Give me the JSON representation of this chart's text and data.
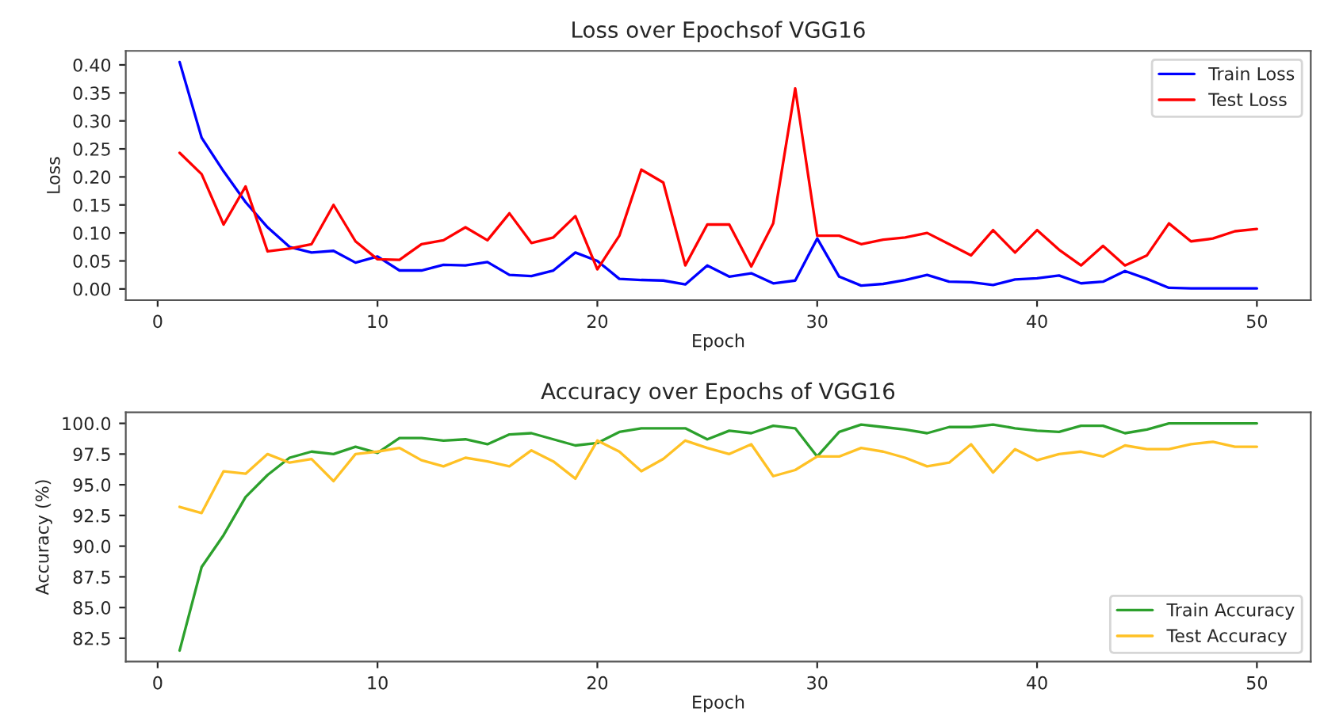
{
  "chart_data": [
    {
      "type": "line",
      "title": "Loss over Epochsof VGG16",
      "xlabel": "Epoch",
      "ylabel": "Loss",
      "x": [
        1,
        2,
        3,
        4,
        5,
        6,
        7,
        8,
        9,
        10,
        11,
        12,
        13,
        14,
        15,
        16,
        17,
        18,
        19,
        20,
        21,
        22,
        23,
        24,
        25,
        26,
        27,
        28,
        29,
        30,
        31,
        32,
        33,
        34,
        35,
        36,
        37,
        38,
        39,
        40,
        41,
        42,
        43,
        44,
        45,
        46,
        47,
        48,
        49,
        50
      ],
      "series": [
        {
          "name": "Train Loss",
          "color": "#0000ff",
          "values": [
            0.405,
            0.27,
            0.21,
            0.155,
            0.11,
            0.075,
            0.065,
            0.068,
            0.047,
            0.058,
            0.033,
            0.033,
            0.043,
            0.042,
            0.048,
            0.025,
            0.023,
            0.033,
            0.065,
            0.05,
            0.018,
            0.016,
            0.015,
            0.008,
            0.042,
            0.022,
            0.028,
            0.01,
            0.015,
            0.09,
            0.022,
            0.006,
            0.009,
            0.016,
            0.025,
            0.013,
            0.012,
            0.007,
            0.017,
            0.019,
            0.024,
            0.01,
            0.013,
            0.032,
            0.018,
            0.002,
            0.001,
            0.001,
            0.001,
            0.001
          ]
        },
        {
          "name": "Test Loss",
          "color": "#ff0000",
          "values": [
            0.243,
            0.205,
            0.115,
            0.183,
            0.067,
            0.072,
            0.08,
            0.15,
            0.085,
            0.053,
            0.052,
            0.08,
            0.087,
            0.11,
            0.087,
            0.135,
            0.082,
            0.092,
            0.13,
            0.035,
            0.095,
            0.213,
            0.19,
            0.042,
            0.115,
            0.115,
            0.04,
            0.117,
            0.358,
            0.095,
            0.095,
            0.08,
            0.088,
            0.092,
            0.1,
            0.08,
            0.06,
            0.105,
            0.065,
            0.105,
            0.07,
            0.042,
            0.077,
            0.042,
            0.06,
            0.117,
            0.085,
            0.09,
            0.103,
            0.107
          ]
        }
      ],
      "xlim": [
        -1.45,
        52.45
      ],
      "xticks": [
        0,
        10,
        20,
        30,
        40,
        50
      ],
      "ylim": [
        -0.02,
        0.425
      ],
      "yticks": [
        {
          "value": 0,
          "label": "0.00"
        },
        {
          "value": 0.05,
          "label": "0.05"
        },
        {
          "value": 0.1,
          "label": "0.10"
        },
        {
          "value": 0.15,
          "label": "0.15"
        },
        {
          "value": 0.2,
          "label": "0.20"
        },
        {
          "value": 0.25,
          "label": "0.25"
        },
        {
          "value": 0.3,
          "label": "0.30"
        },
        {
          "value": 0.35,
          "label": "0.35"
        },
        {
          "value": 0.4,
          "label": "0.40"
        }
      ],
      "legend": "top right",
      "grid": false
    },
    {
      "type": "line",
      "title": "Accuracy over Epochs of VGG16",
      "xlabel": "Epoch",
      "ylabel": "Accuracy (%)",
      "x": [
        1,
        2,
        3,
        4,
        5,
        6,
        7,
        8,
        9,
        10,
        11,
        12,
        13,
        14,
        15,
        16,
        17,
        18,
        19,
        20,
        21,
        22,
        23,
        24,
        25,
        26,
        27,
        28,
        29,
        30,
        31,
        32,
        33,
        34,
        35,
        36,
        37,
        38,
        39,
        40,
        41,
        42,
        43,
        44,
        45,
        46,
        47,
        48,
        49,
        50
      ],
      "series": [
        {
          "name": "Train Accuracy",
          "color": "#2ca02c",
          "values": [
            81.5,
            88.3,
            90.9,
            94.0,
            95.8,
            97.2,
            97.7,
            97.5,
            98.1,
            97.6,
            98.8,
            98.8,
            98.6,
            98.7,
            98.3,
            99.1,
            99.2,
            98.7,
            98.2,
            98.4,
            99.3,
            99.6,
            99.6,
            99.6,
            98.7,
            99.4,
            99.2,
            99.8,
            99.6,
            97.3,
            99.3,
            99.9,
            99.7,
            99.5,
            99.2,
            99.7,
            99.7,
            99.9,
            99.6,
            99.4,
            99.3,
            99.8,
            99.8,
            99.2,
            99.5,
            100.0,
            100.0,
            100.0,
            100.0,
            100.0
          ]
        },
        {
          "name": "Test Accuracy",
          "color": "#ffc125",
          "values": [
            93.2,
            92.7,
            96.1,
            95.9,
            97.5,
            96.8,
            97.1,
            95.3,
            97.5,
            97.7,
            98.0,
            97.0,
            96.5,
            97.2,
            96.9,
            96.5,
            97.8,
            96.9,
            95.5,
            98.6,
            97.7,
            96.1,
            97.1,
            98.6,
            98.0,
            97.5,
            98.3,
            95.7,
            96.2,
            97.3,
            97.3,
            98.0,
            97.7,
            97.2,
            96.5,
            96.8,
            98.3,
            96.0,
            97.9,
            97.0,
            97.5,
            97.7,
            97.3,
            98.2,
            97.9,
            97.9,
            98.3,
            98.5,
            98.1,
            98.1
          ]
        }
      ],
      "xlim": [
        -1.45,
        52.45
      ],
      "xticks": [
        0,
        10,
        20,
        30,
        40,
        50
      ],
      "ylim": [
        80.6,
        100.9
      ],
      "yticks": [
        {
          "value": 82.5,
          "label": "82.5"
        },
        {
          "value": 85,
          "label": "85.0"
        },
        {
          "value": 87.5,
          "label": "87.5"
        },
        {
          "value": 90,
          "label": "90.0"
        },
        {
          "value": 92.5,
          "label": "92.5"
        },
        {
          "value": 95,
          "label": "95.0"
        },
        {
          "value": 97.5,
          "label": "97.5"
        },
        {
          "value": 100,
          "label": "100.0"
        }
      ],
      "legend": "bottom right",
      "grid": false
    }
  ]
}
